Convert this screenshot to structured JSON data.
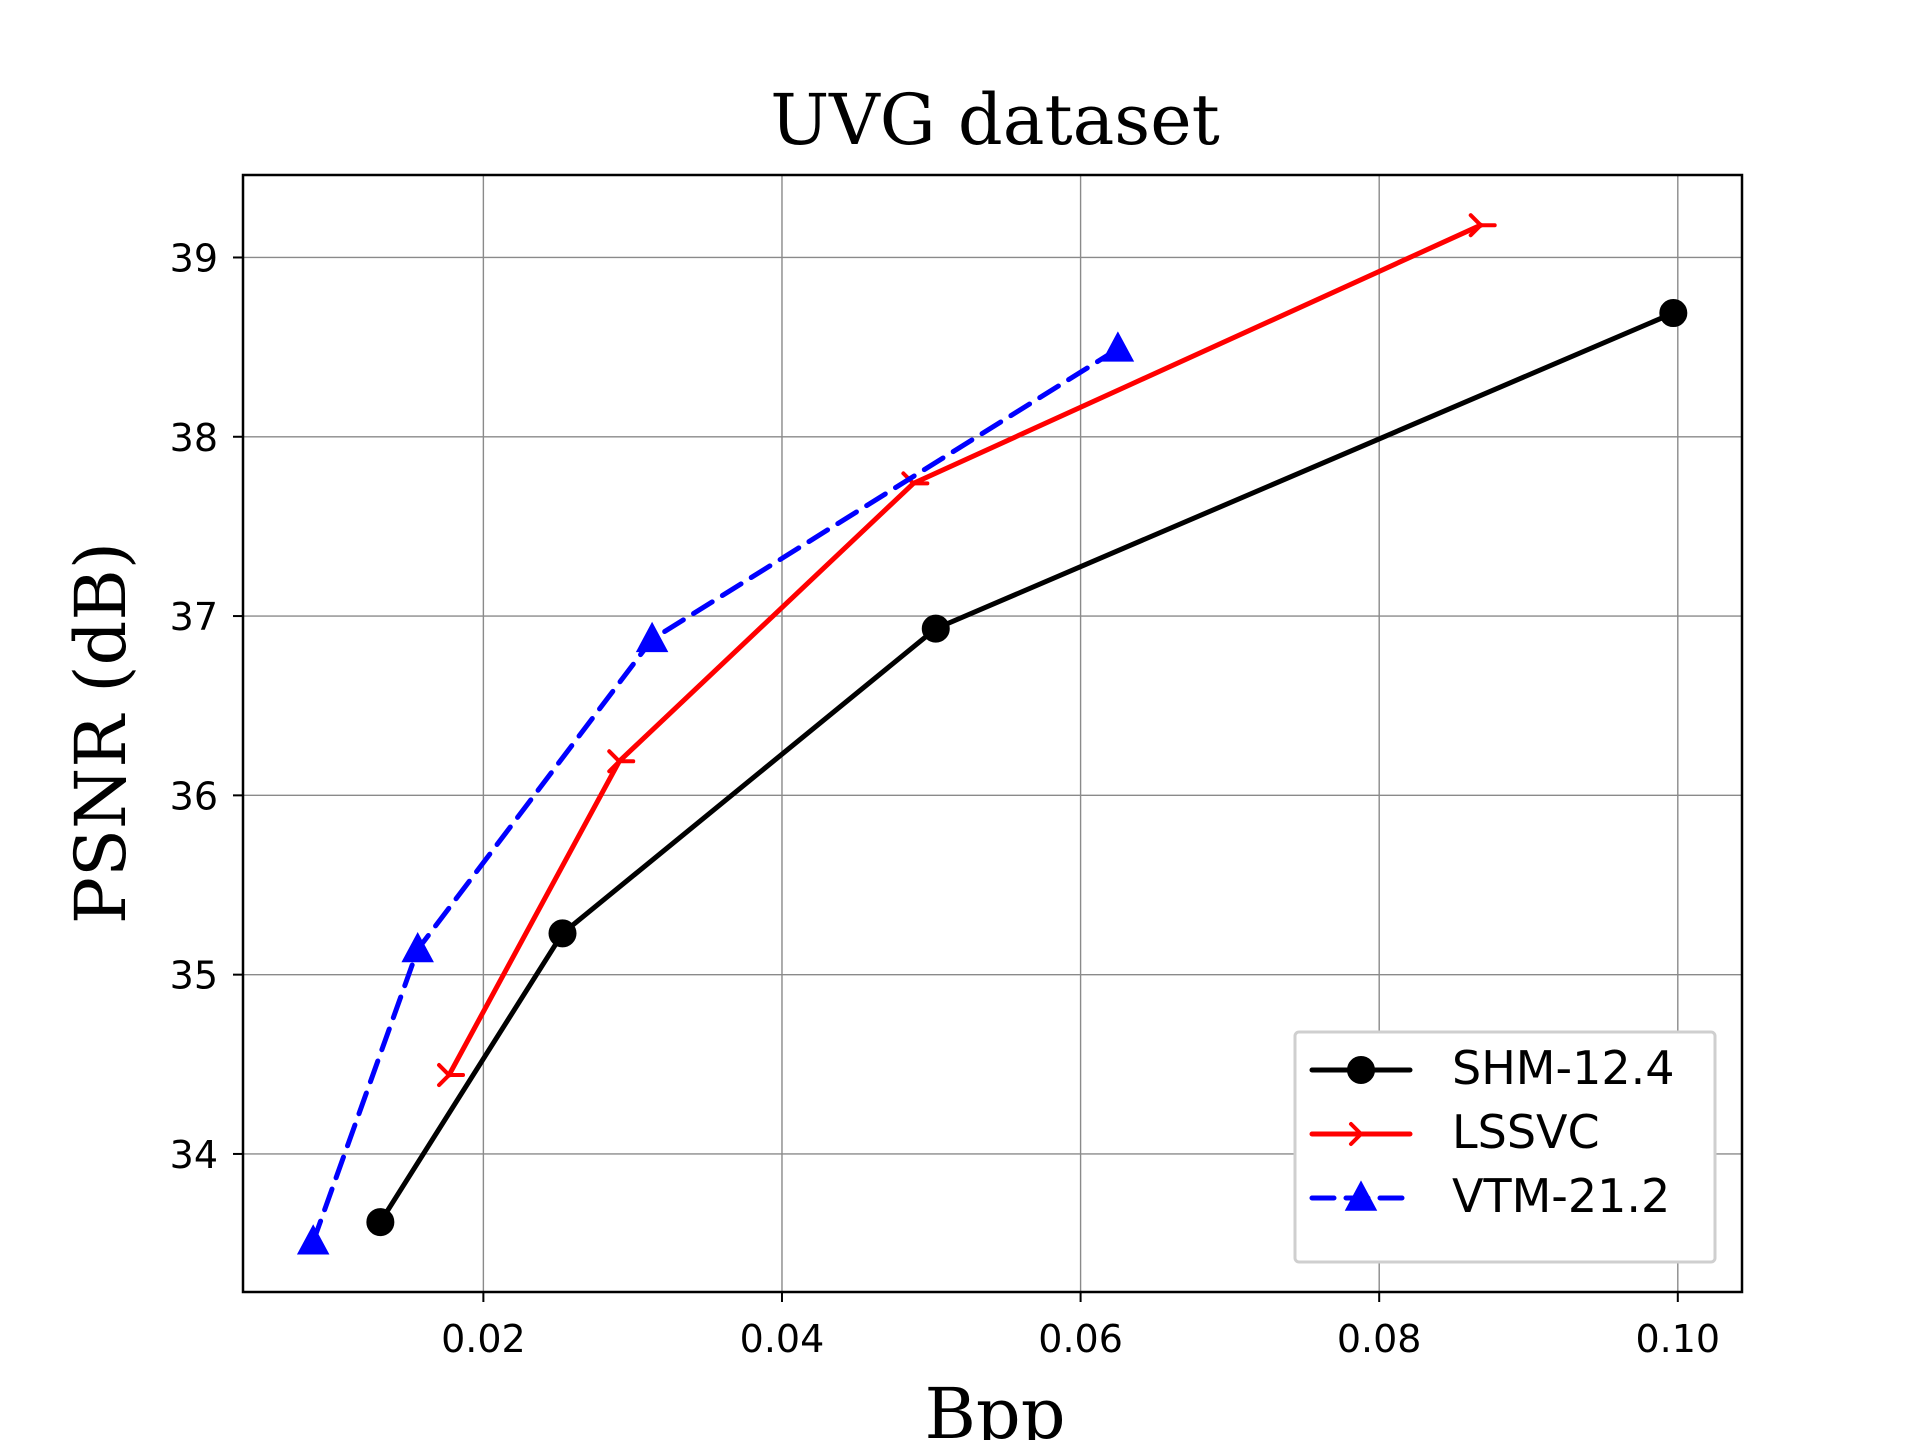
{
  "chart_data": {
    "type": "line",
    "title": "UVG dataset",
    "xlabel": "Bpp",
    "ylabel": "PSNR (dB)",
    "xlim": [
      0.0039,
      0.1043
    ],
    "ylim": [
      33.23,
      39.46
    ],
    "xticks": [
      0.02,
      0.04,
      0.06,
      0.08,
      0.1
    ],
    "xtick_labels": [
      "0.02",
      "0.04",
      "0.06",
      "0.08",
      "0.10"
    ],
    "yticks": [
      34,
      35,
      36,
      37,
      38,
      39
    ],
    "ytick_labels": [
      "34",
      "35",
      "36",
      "37",
      "38",
      "39"
    ],
    "grid": true,
    "legend_position": "lower-right",
    "series": [
      {
        "name": "SHM-12.4",
        "color": "#000000",
        "line_style": "solid",
        "marker": "circle",
        "x": [
          0.0131,
          0.0253,
          0.0503,
          0.0997
        ],
        "y": [
          33.62,
          35.23,
          36.93,
          38.69
        ]
      },
      {
        "name": "LSSVC",
        "color": "#ff0000",
        "line_style": "solid",
        "marker": "tri_right",
        "x": [
          0.0177,
          0.0291,
          0.0488,
          0.0868
        ],
        "y": [
          34.44,
          36.19,
          37.74,
          39.18
        ]
      },
      {
        "name": "VTM-21.2",
        "color": "#0000ff",
        "line_style": "dashed",
        "marker": "triangle_up",
        "x": [
          0.0086,
          0.0156,
          0.0313,
          0.0625
        ],
        "y": [
          33.51,
          35.14,
          36.87,
          38.49
        ]
      }
    ]
  }
}
